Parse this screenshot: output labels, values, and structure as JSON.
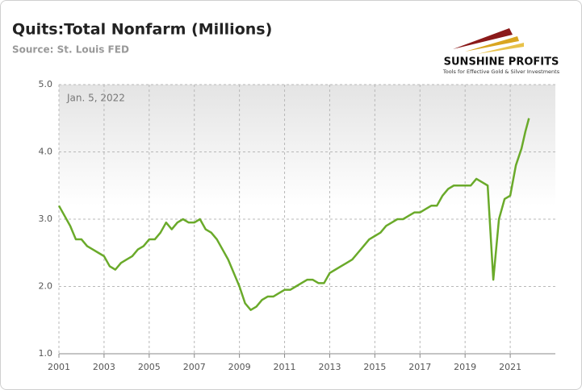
{
  "chart_data": {
    "type": "line",
    "title": "Quits:Total Nonfarm (Millions)",
    "subtitle": "Source: St. Louis FED",
    "annotation": "Jan. 5, 2022",
    "brand": "SUNSHINE PROFITS",
    "brand_tagline": "Tools for Effective Gold & Silver Investments",
    "xlim": [
      2001,
      2023
    ],
    "xticks": [
      2001,
      2003,
      2005,
      2007,
      2009,
      2011,
      2013,
      2015,
      2017,
      2019,
      2021
    ],
    "ylim": [
      1,
      5
    ],
    "yticks": [
      {
        "value": 1,
        "label": "1.0"
      },
      {
        "value": 2,
        "label": "2.0"
      },
      {
        "value": 3,
        "label": "3.0"
      },
      {
        "value": 4,
        "label": "4.0"
      },
      {
        "value": 5,
        "label": "5.0"
      }
    ],
    "grid": true,
    "series": [
      {
        "color": "#6aaa2a",
        "x": [
          2001,
          2001.25,
          2001.5,
          2001.75,
          2002,
          2002.25,
          2002.5,
          2002.75,
          2003,
          2003.25,
          2003.5,
          2003.75,
          2004,
          2004.25,
          2004.5,
          2004.75,
          2005,
          2005.25,
          2005.5,
          2005.75,
          2006,
          2006.25,
          2006.5,
          2006.75,
          2007,
          2007.25,
          2007.5,
          2007.75,
          2008,
          2008.25,
          2008.5,
          2008.75,
          2009,
          2009.25,
          2009.5,
          2009.75,
          2010,
          2010.25,
          2010.5,
          2010.75,
          2011,
          2011.25,
          2011.5,
          2011.75,
          2012,
          2012.25,
          2012.5,
          2012.75,
          2013,
          2013.25,
          2013.5,
          2013.75,
          2014,
          2014.25,
          2014.5,
          2014.75,
          2015,
          2015.25,
          2015.5,
          2015.75,
          2016,
          2016.25,
          2016.5,
          2016.75,
          2017,
          2017.25,
          2017.5,
          2017.75,
          2018,
          2018.25,
          2018.5,
          2018.75,
          2019,
          2019.25,
          2019.5,
          2019.75,
          2020,
          2020.25,
          2020.5,
          2020.75,
          2021,
          2021.25,
          2021.5,
          2021.67,
          2021.83
        ],
        "values": [
          3.2,
          3.05,
          2.9,
          2.7,
          2.7,
          2.6,
          2.55,
          2.5,
          2.45,
          2.3,
          2.25,
          2.35,
          2.4,
          2.45,
          2.55,
          2.6,
          2.7,
          2.7,
          2.8,
          2.95,
          2.85,
          2.95,
          3.0,
          2.95,
          2.95,
          3.0,
          2.85,
          2.8,
          2.7,
          2.55,
          2.4,
          2.2,
          2.0,
          1.75,
          1.65,
          1.7,
          1.8,
          1.85,
          1.85,
          1.9,
          1.95,
          1.95,
          2.0,
          2.05,
          2.1,
          2.1,
          2.05,
          2.05,
          2.2,
          2.25,
          2.3,
          2.35,
          2.4,
          2.5,
          2.6,
          2.7,
          2.75,
          2.8,
          2.9,
          2.95,
          3.0,
          3.0,
          3.05,
          3.1,
          3.1,
          3.15,
          3.2,
          3.2,
          3.35,
          3.45,
          3.5,
          3.5,
          3.5,
          3.5,
          3.6,
          3.55,
          3.5,
          2.1,
          3.0,
          3.3,
          3.35,
          3.8,
          4.05,
          4.3,
          4.5
        ]
      }
    ]
  }
}
